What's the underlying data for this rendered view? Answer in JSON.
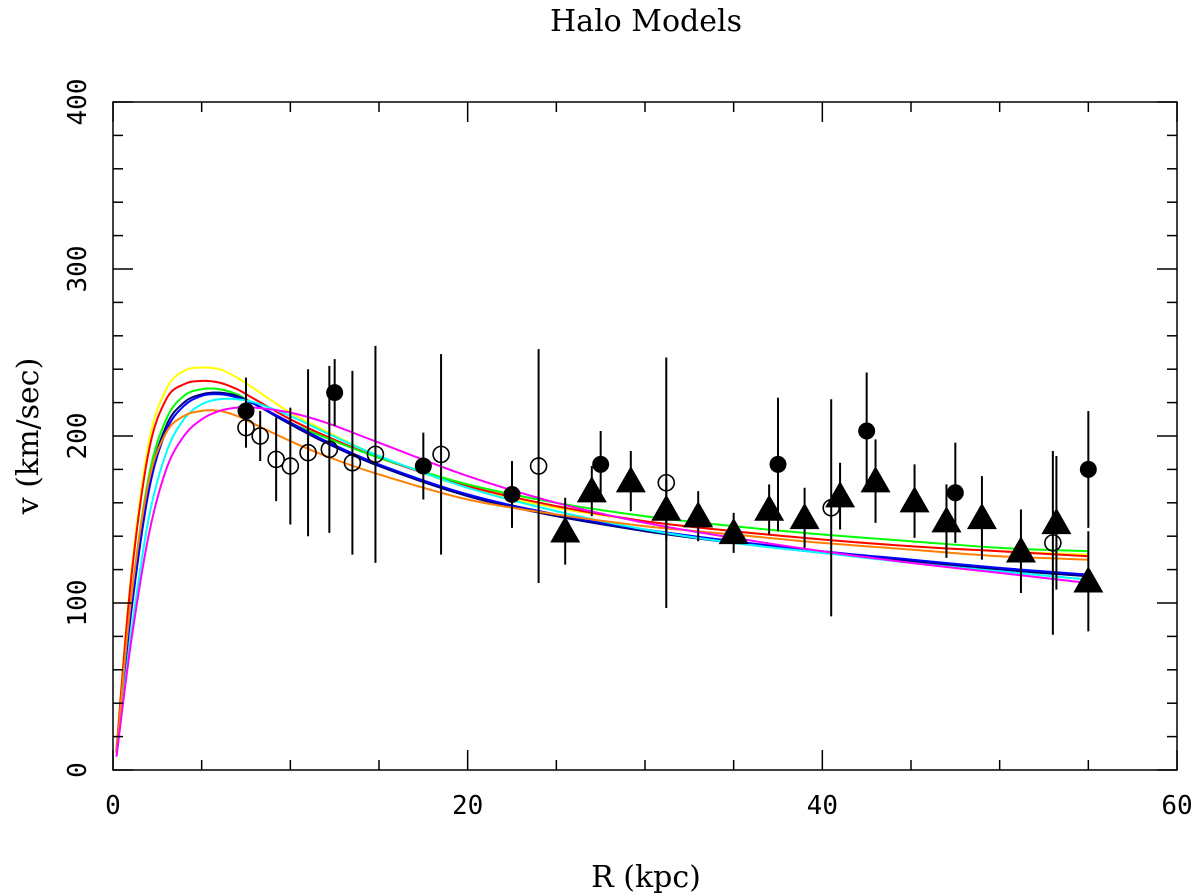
{
  "chart_data": {
    "type": "scatter",
    "title": "Halo Models",
    "xlabel": "R (kpc)",
    "ylabel": "v (km/sec)",
    "xlim": [
      0,
      60
    ],
    "ylim": [
      0,
      400
    ],
    "x_ticks": [
      0,
      20,
      40,
      60
    ],
    "y_ticks": [
      0,
      100,
      200,
      300,
      400
    ],
    "x_tick_labels": [
      "0",
      "20",
      "40",
      "60"
    ],
    "y_tick_labels": [
      "0",
      "100",
      "200",
      "300",
      "400"
    ],
    "grid": false,
    "legend": "none",
    "model_curves": [
      {
        "name": "yellow",
        "color": "#ffff00",
        "points": [
          [
            0.2,
            12
          ],
          [
            1,
            115
          ],
          [
            2,
            195
          ],
          [
            3,
            228
          ],
          [
            4,
            239
          ],
          [
            5,
            241
          ],
          [
            6,
            240
          ],
          [
            7,
            235
          ],
          [
            8,
            228
          ],
          [
            10,
            214
          ],
          [
            12,
            203
          ],
          [
            15,
            188
          ],
          [
            20,
            169
          ],
          [
            25,
            157
          ],
          [
            30,
            149
          ],
          [
            35,
            143
          ],
          [
            40,
            138
          ],
          [
            45,
            134
          ],
          [
            50,
            131
          ],
          [
            55,
            129
          ]
        ]
      },
      {
        "name": "red",
        "color": "#ff0000",
        "points": [
          [
            0.2,
            12
          ],
          [
            1,
            112
          ],
          [
            2,
            190
          ],
          [
            3,
            222
          ],
          [
            4,
            231
          ],
          [
            5,
            233
          ],
          [
            6,
            232
          ],
          [
            7,
            228
          ],
          [
            8,
            222
          ],
          [
            10,
            210
          ],
          [
            12,
            200
          ],
          [
            15,
            187
          ],
          [
            20,
            170
          ],
          [
            25,
            158
          ],
          [
            30,
            149
          ],
          [
            35,
            143
          ],
          [
            40,
            138
          ],
          [
            45,
            134
          ],
          [
            50,
            131
          ],
          [
            55,
            128
          ]
        ]
      },
      {
        "name": "green",
        "color": "#00ff00",
        "points": [
          [
            0.2,
            10
          ],
          [
            1,
            100
          ],
          [
            2,
            175
          ],
          [
            3,
            210
          ],
          [
            4,
            224
          ],
          [
            5,
            228
          ],
          [
            6,
            228
          ],
          [
            7,
            225
          ],
          [
            8,
            219
          ],
          [
            10,
            208
          ],
          [
            12,
            199
          ],
          [
            15,
            187
          ],
          [
            20,
            171
          ],
          [
            25,
            160
          ],
          [
            30,
            152
          ],
          [
            35,
            146
          ],
          [
            40,
            141
          ],
          [
            45,
            137
          ],
          [
            50,
            133
          ],
          [
            55,
            131
          ]
        ]
      },
      {
        "name": "navy",
        "color": "#000080",
        "points": [
          [
            0.2,
            10
          ],
          [
            1,
            95
          ],
          [
            2,
            170
          ],
          [
            3,
            206
          ],
          [
            4,
            220
          ],
          [
            5,
            225
          ],
          [
            6,
            226
          ],
          [
            7,
            224
          ],
          [
            8,
            219
          ],
          [
            10,
            207
          ],
          [
            12,
            196
          ],
          [
            15,
            182
          ],
          [
            20,
            164
          ],
          [
            25,
            152
          ],
          [
            30,
            143
          ],
          [
            35,
            136
          ],
          [
            40,
            130
          ],
          [
            45,
            125
          ],
          [
            50,
            120
          ],
          [
            55,
            116
          ]
        ]
      },
      {
        "name": "blue",
        "color": "#0000ff",
        "points": [
          [
            0.2,
            10
          ],
          [
            1,
            92
          ],
          [
            2,
            166
          ],
          [
            3,
            203
          ],
          [
            4,
            218
          ],
          [
            5,
            224
          ],
          [
            6,
            225
          ],
          [
            7,
            223
          ],
          [
            8,
            219
          ],
          [
            10,
            208
          ],
          [
            12,
            197
          ],
          [
            15,
            183
          ],
          [
            20,
            165
          ],
          [
            25,
            153
          ],
          [
            30,
            144
          ],
          [
            35,
            137
          ],
          [
            40,
            131
          ],
          [
            45,
            126
          ],
          [
            50,
            121
          ],
          [
            55,
            117
          ]
        ]
      },
      {
        "name": "cyan",
        "color": "#00ffff",
        "points": [
          [
            0.2,
            8
          ],
          [
            1,
            80
          ],
          [
            2,
            150
          ],
          [
            3,
            190
          ],
          [
            4,
            210
          ],
          [
            5,
            219
          ],
          [
            6,
            222
          ],
          [
            7,
            222
          ],
          [
            8,
            220
          ],
          [
            10,
            212
          ],
          [
            12,
            202
          ],
          [
            15,
            188
          ],
          [
            20,
            169
          ],
          [
            25,
            155
          ],
          [
            30,
            144
          ],
          [
            35,
            136
          ],
          [
            40,
            130
          ],
          [
            45,
            124
          ],
          [
            50,
            119
          ],
          [
            55,
            114
          ]
        ]
      },
      {
        "name": "orange",
        "color": "#ff8000",
        "points": [
          [
            0.2,
            10
          ],
          [
            1,
            100
          ],
          [
            2,
            172
          ],
          [
            3,
            202
          ],
          [
            4,
            212
          ],
          [
            5,
            215
          ],
          [
            6,
            215
          ],
          [
            7,
            212
          ],
          [
            8,
            207
          ],
          [
            10,
            197
          ],
          [
            12,
            188
          ],
          [
            15,
            177
          ],
          [
            20,
            162
          ],
          [
            25,
            153
          ],
          [
            30,
            146
          ],
          [
            35,
            141
          ],
          [
            40,
            136
          ],
          [
            45,
            132
          ],
          [
            50,
            128
          ],
          [
            55,
            126
          ]
        ]
      },
      {
        "name": "magenta",
        "color": "#ff00ff",
        "points": [
          [
            0.2,
            8
          ],
          [
            1,
            75
          ],
          [
            2,
            140
          ],
          [
            3,
            180
          ],
          [
            4,
            200
          ],
          [
            5,
            210
          ],
          [
            6,
            215
          ],
          [
            7,
            217
          ],
          [
            8,
            217
          ],
          [
            10,
            214
          ],
          [
            12,
            208
          ],
          [
            15,
            196
          ],
          [
            20,
            176
          ],
          [
            25,
            160
          ],
          [
            30,
            148
          ],
          [
            35,
            139
          ],
          [
            40,
            131
          ],
          [
            45,
            124
          ],
          [
            50,
            118
          ],
          [
            55,
            112
          ]
        ]
      }
    ],
    "series": [
      {
        "name": "filled circles",
        "marker": "filled-circle",
        "points": [
          {
            "x": 7.5,
            "y": 215,
            "err": 20
          },
          {
            "x": 12.5,
            "y": 226,
            "err": 20
          },
          {
            "x": 17.5,
            "y": 182,
            "err": 20
          },
          {
            "x": 22.5,
            "y": 165,
            "err": 20
          },
          {
            "x": 27.5,
            "y": 183,
            "err": 20
          },
          {
            "x": 37.5,
            "y": 183,
            "err": 40
          },
          {
            "x": 42.5,
            "y": 203,
            "err": 35
          },
          {
            "x": 47.5,
            "y": 166,
            "err": 30
          },
          {
            "x": 55,
            "y": 180,
            "err": 35
          }
        ]
      },
      {
        "name": "open circles",
        "marker": "open-circle",
        "points": [
          {
            "x": 7.5,
            "y": 205,
            "err": 12
          },
          {
            "x": 8.3,
            "y": 200,
            "err": 15
          },
          {
            "x": 9.2,
            "y": 186,
            "err": 25
          },
          {
            "x": 10,
            "y": 182,
            "err": 35
          },
          {
            "x": 11,
            "y": 190,
            "err": 50
          },
          {
            "x": 12.2,
            "y": 192,
            "err": 50
          },
          {
            "x": 13.5,
            "y": 184,
            "err": 55
          },
          {
            "x": 14.8,
            "y": 189,
            "err": 65
          },
          {
            "x": 18.5,
            "y": 189,
            "err": 60
          },
          {
            "x": 24,
            "y": 182,
            "err": 70
          },
          {
            "x": 31.2,
            "y": 172,
            "err": 75
          },
          {
            "x": 40.5,
            "y": 157,
            "err": 65
          },
          {
            "x": 53,
            "y": 136,
            "err": 55
          }
        ]
      },
      {
        "name": "filled triangles",
        "marker": "filled-triangle",
        "points": [
          {
            "x": 25.5,
            "y": 143,
            "err": 20
          },
          {
            "x": 27,
            "y": 167,
            "err": 15
          },
          {
            "x": 29.2,
            "y": 173,
            "err": 18
          },
          {
            "x": 31.2,
            "y": 156,
            "err": 18
          },
          {
            "x": 33,
            "y": 152,
            "err": 15
          },
          {
            "x": 35,
            "y": 142,
            "err": 12
          },
          {
            "x": 37,
            "y": 156,
            "err": 15
          },
          {
            "x": 39,
            "y": 151,
            "err": 18
          },
          {
            "x": 41,
            "y": 164,
            "err": 20
          },
          {
            "x": 43,
            "y": 173,
            "err": 25
          },
          {
            "x": 45.2,
            "y": 161,
            "err": 22
          },
          {
            "x": 47,
            "y": 149,
            "err": 22
          },
          {
            "x": 49,
            "y": 151,
            "err": 25
          },
          {
            "x": 51.2,
            "y": 131,
            "err": 25
          },
          {
            "x": 53.2,
            "y": 148,
            "err": 40
          },
          {
            "x": 55,
            "y": 113,
            "err": 30
          }
        ]
      }
    ]
  }
}
